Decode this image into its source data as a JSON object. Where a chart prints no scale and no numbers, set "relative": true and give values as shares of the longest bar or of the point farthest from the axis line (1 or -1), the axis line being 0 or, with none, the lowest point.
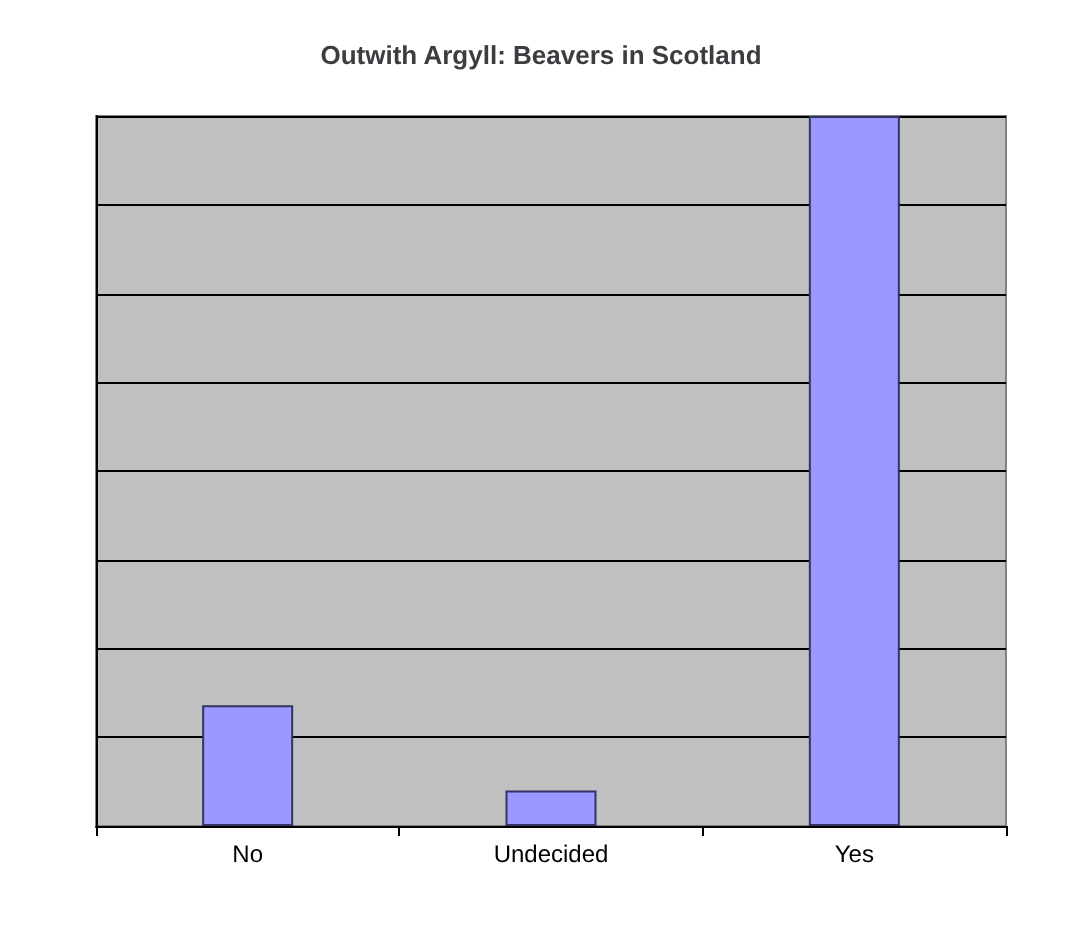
{
  "chart_data": {
    "type": "bar",
    "title": "Outwith Argyll: Beavers in Scotland",
    "categories": [
      "No",
      "Undecided",
      "Yes"
    ],
    "values": [
      0.17,
      0.05,
      1
    ],
    "color": "#9999ff",
    "relative": true,
    "grid": "y"
  }
}
